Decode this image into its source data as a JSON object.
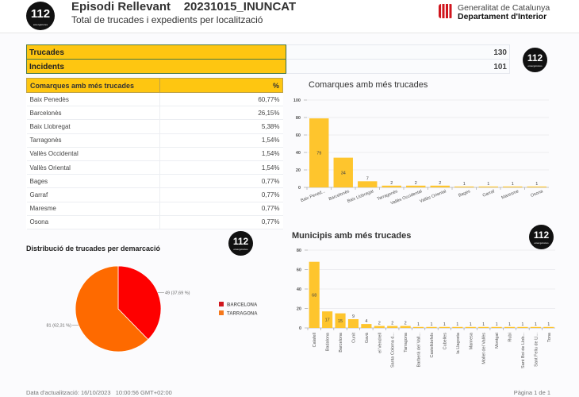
{
  "header": {
    "logo_text": "112",
    "logo_sub": "emergències",
    "title": "Episodi Rellevant    20231015_INUNCAT",
    "subtitle": "Total de trucades i expedients per localització",
    "gencat_line1": "Generalitat de Catalunya",
    "gencat_line2": "Departament d'Interior"
  },
  "kpis": [
    {
      "label": "Trucades",
      "value": "130"
    },
    {
      "label": "Incidents",
      "value": "101"
    }
  ],
  "table": {
    "headers": [
      "Comarques amb més trucades",
      "%"
    ],
    "rows": [
      [
        "Baix Penedès",
        "60,77%"
      ],
      [
        "Barcelonès",
        "26,15%"
      ],
      [
        "Baix Llobregat",
        "5,38%"
      ],
      [
        "Tarragonès",
        "1,54%"
      ],
      [
        "Vallès Occidental",
        "1,54%"
      ],
      [
        "Vallès Oriental",
        "1,54%"
      ],
      [
        "Bages",
        "0,77%"
      ],
      [
        "Garraf",
        "0,77%"
      ],
      [
        "Maresme",
        "0,77%"
      ],
      [
        "Osona",
        "0,77%"
      ]
    ]
  },
  "chart_data": [
    {
      "type": "bar",
      "title": "Comarques amb més trucades",
      "categories": [
        "Baix Pened...",
        "Barcelonès",
        "Baix Llobregat",
        "Tarragonès",
        "Vallès Occidental",
        "Vallès Oriental",
        "Bages",
        "Garraf",
        "Maresme",
        "Osona"
      ],
      "values": [
        79,
        34,
        7,
        2,
        2,
        2,
        1,
        1,
        1,
        1
      ],
      "ylim": [
        0,
        100
      ],
      "yticks": [
        0,
        20,
        40,
        60,
        80,
        100
      ],
      "xlabel": "",
      "ylabel": "",
      "color": "#fec52d",
      "grid": true
    },
    {
      "type": "bar",
      "title": "Municipis amb més trucades",
      "categories": [
        "Calafell",
        "Badalona",
        "Barcelona",
        "Cunit",
        "Gavà",
        "el Vendrell",
        "Santa Coloma d...",
        "Tarragona",
        "Barberà del Vall...",
        "Castelldefels",
        "Cubelles",
        "la Llagosta",
        "Manresa",
        "Mollet del Vallès",
        "Montgat",
        "Rubí",
        "Sant Boi de Llob...",
        "Sant Feliu de Ll...",
        "Tona"
      ],
      "values": [
        68,
        17,
        15,
        9,
        4,
        2,
        2,
        2,
        1,
        1,
        1,
        1,
        1,
        1,
        1,
        1,
        1,
        1,
        1
      ],
      "ylim": [
        0,
        80
      ],
      "yticks": [
        0,
        20,
        40,
        60,
        80
      ],
      "xlabel": "",
      "ylabel": "",
      "color": "#fec52d",
      "grid": true
    },
    {
      "type": "pie",
      "title": "Distribució de trucades per demarcació",
      "labels": [
        "BARCELONA",
        "TARRAGONA"
      ],
      "values": [
        49,
        81
      ],
      "value_labels": [
        "49 (37,69 %)",
        "81 (62,31 %)"
      ],
      "colors": [
        "#fe0000",
        "#fe6a00"
      ],
      "legend_colors": [
        "#d0161e",
        "#f5781c"
      ],
      "legend": "right"
    }
  ],
  "footer": {
    "updated": "Data d'actualització: 16/10/2023   10:00:56 GMT+02:00",
    "page": "Pàgina 1 de 1"
  }
}
